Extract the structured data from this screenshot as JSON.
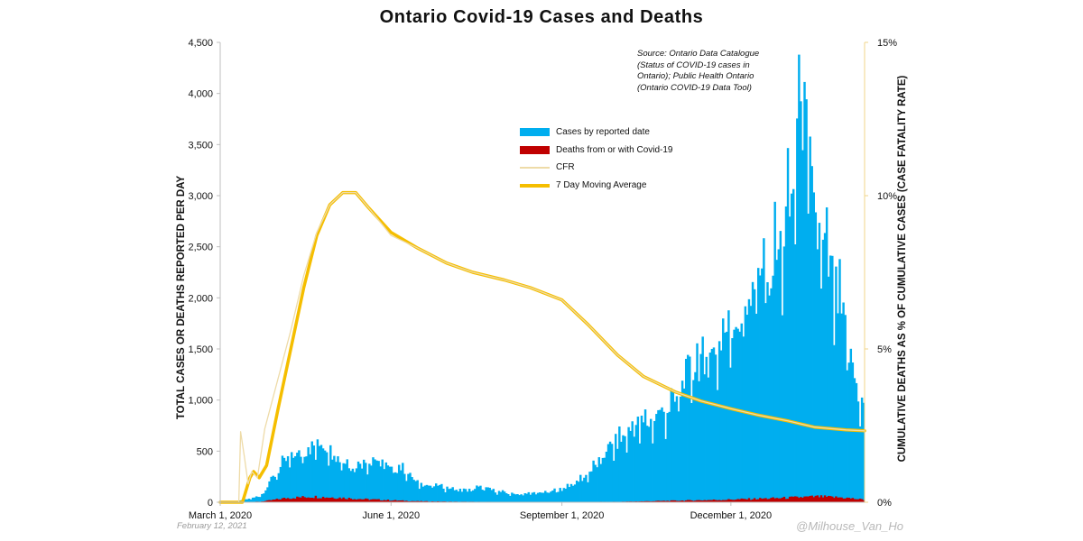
{
  "title": "Ontario Covid-19 Cases and Deaths",
  "source_note": "Source: Ontario Data Catalogue (Status of COVID-19 cases in Ontario); Public Health Ontario (Ontario COVID-19 Data Tool)",
  "date_stamp": "February 12, 2021",
  "watermark": "@Milhouse_Van_Ho",
  "colors": {
    "cases": "#00AEEF",
    "deaths": "#C00000",
    "cfr": "#EEDBA8",
    "moving_average": "#F5BE00"
  },
  "chart_data": {
    "type": "bar",
    "title": "Ontario Covid-19 Cases and Deaths",
    "ylabel_left": "TOTAL CASES OR DEATHS REPORTED PER DAY",
    "ylabel_right": "CUMULATIVE DEATHS AS % OF CUMULATIVE CASES (CASE FATALITY RATE)",
    "y_left_range": [
      0,
      4500
    ],
    "y_left_ticks": [
      "0",
      "500",
      "1,000",
      "1,500",
      "2,000",
      "2,500",
      "3,000",
      "3,500",
      "4,000",
      "4,500"
    ],
    "y_right_range": [
      0,
      15
    ],
    "y_right_ticks": [
      "0%",
      "5%",
      "10%",
      "15%"
    ],
    "x_range": [
      "2020-03-01",
      "2021-02-11"
    ],
    "x_ticks": [
      {
        "date": "2020-03-01",
        "label": "March 1, 2020"
      },
      {
        "date": "2020-06-01",
        "label": "June 1, 2020"
      },
      {
        "date": "2020-09-01",
        "label": "September 1, 2020"
      },
      {
        "date": "2020-12-01",
        "label": "December 1, 2020"
      }
    ],
    "legend": {
      "position": "center-top",
      "entries": [
        "Cases by reported date",
        "Deaths from or with Covid-19",
        "CFR",
        "7 Day Moving Average"
      ]
    },
    "series": [
      {
        "name": "Cases by reported date",
        "kind": "bar",
        "axis": "left",
        "points": [
          [
            "2020-03-01",
            0
          ],
          [
            "2020-03-08",
            5
          ],
          [
            "2020-03-15",
            30
          ],
          [
            "2020-03-22",
            60
          ],
          [
            "2020-03-29",
            250
          ],
          [
            "2020-04-05",
            420
          ],
          [
            "2020-04-12",
            480
          ],
          [
            "2020-04-19",
            560
          ],
          [
            "2020-04-26",
            580
          ],
          [
            "2020-05-03",
            450
          ],
          [
            "2020-05-10",
            370
          ],
          [
            "2020-05-17",
            400
          ],
          [
            "2020-05-24",
            440
          ],
          [
            "2020-05-31",
            330
          ],
          [
            "2020-06-07",
            350
          ],
          [
            "2020-06-14",
            200
          ],
          [
            "2020-06-21",
            170
          ],
          [
            "2020-06-28",
            160
          ],
          [
            "2020-07-05",
            130
          ],
          [
            "2020-07-12",
            120
          ],
          [
            "2020-07-19",
            150
          ],
          [
            "2020-07-26",
            120
          ],
          [
            "2020-08-02",
            90
          ],
          [
            "2020-08-09",
            80
          ],
          [
            "2020-08-16",
            90
          ],
          [
            "2020-08-23",
            100
          ],
          [
            "2020-08-30",
            120
          ],
          [
            "2020-09-06",
            180
          ],
          [
            "2020-09-13",
            250
          ],
          [
            "2020-09-20",
            380
          ],
          [
            "2020-09-27",
            560
          ],
          [
            "2020-10-04",
            650
          ],
          [
            "2020-10-11",
            780
          ],
          [
            "2020-10-18",
            800
          ],
          [
            "2020-10-25",
            900
          ],
          [
            "2020-11-01",
            1000
          ],
          [
            "2020-11-08",
            1300
          ],
          [
            "2020-11-15",
            1450
          ],
          [
            "2020-11-22",
            1500
          ],
          [
            "2020-11-29",
            1750
          ],
          [
            "2020-12-06",
            1850
          ],
          [
            "2020-12-13",
            2100
          ],
          [
            "2020-12-20",
            2350
          ],
          [
            "2020-12-27",
            2500
          ],
          [
            "2021-01-03",
            3000
          ],
          [
            "2021-01-08",
            4200
          ],
          [
            "2021-01-12",
            3400
          ],
          [
            "2021-01-17",
            2700
          ],
          [
            "2021-01-24",
            2300
          ],
          [
            "2021-01-31",
            1800
          ],
          [
            "2021-02-05",
            1300
          ],
          [
            "2021-02-11",
            950
          ]
        ]
      },
      {
        "name": "Deaths from or with Covid-19",
        "kind": "bar",
        "axis": "left",
        "points": [
          [
            "2020-03-01",
            0
          ],
          [
            "2020-03-22",
            5
          ],
          [
            "2020-04-05",
            40
          ],
          [
            "2020-04-19",
            55
          ],
          [
            "2020-05-03",
            45
          ],
          [
            "2020-05-17",
            30
          ],
          [
            "2020-05-31",
            20
          ],
          [
            "2020-06-14",
            10
          ],
          [
            "2020-07-05",
            5
          ],
          [
            "2020-08-02",
            3
          ],
          [
            "2020-09-06",
            2
          ],
          [
            "2020-10-04",
            5
          ],
          [
            "2020-11-01",
            15
          ],
          [
            "2020-11-29",
            25
          ],
          [
            "2020-12-27",
            40
          ],
          [
            "2021-01-17",
            55
          ],
          [
            "2021-01-31",
            45
          ],
          [
            "2021-02-11",
            25
          ]
        ]
      },
      {
        "name": "CFR",
        "kind": "line",
        "axis": "right",
        "points": [
          [
            "2020-03-11",
            0.0
          ],
          [
            "2020-03-12",
            2.3
          ],
          [
            "2020-03-14",
            1.5
          ],
          [
            "2020-03-16",
            0.6
          ],
          [
            "2020-03-18",
            1.0
          ],
          [
            "2020-03-21",
            0.8
          ],
          [
            "2020-03-25",
            2.4
          ],
          [
            "2020-04-01",
            4.0
          ],
          [
            "2020-04-08",
            5.6
          ],
          [
            "2020-04-15",
            7.4
          ],
          [
            "2020-04-22",
            8.8
          ],
          [
            "2020-04-29",
            9.7
          ],
          [
            "2020-05-06",
            10.1
          ],
          [
            "2020-05-13",
            10.1
          ],
          [
            "2020-05-20",
            9.6
          ],
          [
            "2020-06-01",
            8.7
          ],
          [
            "2020-06-15",
            8.3
          ],
          [
            "2020-07-01",
            7.8
          ],
          [
            "2020-07-15",
            7.5
          ],
          [
            "2020-08-01",
            7.25
          ],
          [
            "2020-08-15",
            7.0
          ],
          [
            "2020-09-01",
            6.6
          ],
          [
            "2020-09-15",
            5.8
          ],
          [
            "2020-10-01",
            4.8
          ],
          [
            "2020-10-15",
            4.1
          ],
          [
            "2020-11-01",
            3.6
          ],
          [
            "2020-11-15",
            3.3
          ],
          [
            "2020-12-01",
            3.05
          ],
          [
            "2020-12-15",
            2.85
          ],
          [
            "2021-01-01",
            2.65
          ],
          [
            "2021-01-15",
            2.45
          ],
          [
            "2021-02-01",
            2.36
          ],
          [
            "2021-02-11",
            2.33
          ]
        ]
      },
      {
        "name": "7 Day Moving Average",
        "kind": "line",
        "axis": "right",
        "points": [
          [
            "2020-03-01",
            0.0
          ],
          [
            "2020-03-13",
            0.0
          ],
          [
            "2020-03-17",
            0.8
          ],
          [
            "2020-03-19",
            1.0
          ],
          [
            "2020-03-22",
            0.8
          ],
          [
            "2020-03-26",
            1.2
          ],
          [
            "2020-04-01",
            3.0
          ],
          [
            "2020-04-08",
            5.0
          ],
          [
            "2020-04-15",
            7.0
          ],
          [
            "2020-04-22",
            8.7
          ],
          [
            "2020-04-29",
            9.7
          ],
          [
            "2020-05-06",
            10.1
          ],
          [
            "2020-05-13",
            10.1
          ],
          [
            "2020-05-20",
            9.6
          ],
          [
            "2020-06-01",
            8.8
          ],
          [
            "2020-06-15",
            8.3
          ],
          [
            "2020-07-01",
            7.8
          ],
          [
            "2020-07-15",
            7.5
          ],
          [
            "2020-08-01",
            7.25
          ],
          [
            "2020-08-15",
            7.0
          ],
          [
            "2020-09-01",
            6.6
          ],
          [
            "2020-09-15",
            5.8
          ],
          [
            "2020-10-01",
            4.8
          ],
          [
            "2020-10-15",
            4.1
          ],
          [
            "2020-11-01",
            3.6
          ],
          [
            "2020-11-15",
            3.3
          ],
          [
            "2020-12-01",
            3.05
          ],
          [
            "2020-12-15",
            2.85
          ],
          [
            "2021-01-01",
            2.65
          ],
          [
            "2021-01-15",
            2.45
          ],
          [
            "2021-02-01",
            2.36
          ],
          [
            "2021-02-11",
            2.33
          ]
        ]
      }
    ]
  }
}
